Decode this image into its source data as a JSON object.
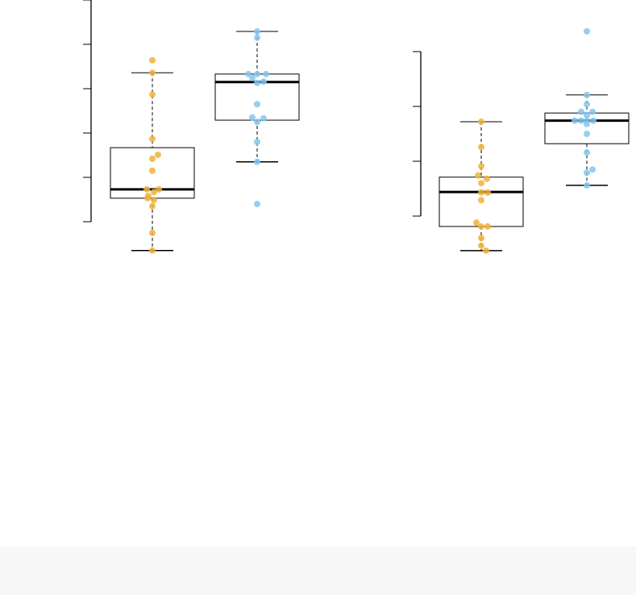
{
  "colors": {
    "group1": "#f0b23a",
    "group2": "#85c6ef",
    "axis": "#000000",
    "footer": "#f7f7f7"
  },
  "chart_data": [
    {
      "type": "box",
      "title": "",
      "xlabel": "",
      "ylabel": "",
      "ylim": [
        -0.8,
        5
      ],
      "yticks": [
        0,
        1,
        2,
        3,
        4,
        5
      ],
      "tick_labels_shown": false,
      "groups": [
        {
          "color": "#f0b23a",
          "box": {
            "whisker_low": -0.65,
            "q1": 0.53,
            "median": 0.73,
            "q3": 1.67,
            "whisker_high": 3.36
          },
          "points": [
            3.64,
            3.36,
            2.87,
            1.87,
            1.51,
            1.42,
            1.15,
            0.73,
            0.73,
            0.67,
            0.58,
            0.53,
            0.49,
            0.35,
            -0.25,
            -0.65
          ]
        },
        {
          "color": "#85c6ef",
          "box": {
            "whisker_low": 1.35,
            "q1": 2.29,
            "median": 3.15,
            "q3": 3.33,
            "whisker_high": 4.29
          },
          "points": [
            4.29,
            4.15,
            3.33,
            3.33,
            3.33,
            3.24,
            3.16,
            3.13,
            2.65,
            2.35,
            2.33,
            2.25,
            1.8,
            1.35,
            0.4
          ]
        }
      ]
    },
    {
      "type": "box",
      "title": "",
      "xlabel": "",
      "ylabel": "",
      "ylim": [
        -0.7,
        3.5
      ],
      "yticks": [
        0,
        1,
        2,
        3
      ],
      "tick_labels_shown": false,
      "groups": [
        {
          "color": "#f0b23a",
          "box": {
            "whisker_low": -0.63,
            "q1": -0.19,
            "median": 0.44,
            "q3": 0.71,
            "whisker_high": 1.72
          },
          "points": [
            1.72,
            1.26,
            0.91,
            0.74,
            0.68,
            0.6,
            0.43,
            0.43,
            0.29,
            -0.12,
            -0.19,
            -0.19,
            -0.4,
            -0.54,
            -0.63
          ]
        },
        {
          "color": "#85c6ef",
          "box": {
            "whisker_low": 0.56,
            "q1": 1.32,
            "median": 1.74,
            "q3": 1.88,
            "whisker_high": 2.21
          },
          "points": [
            3.37,
            2.21,
            2.04,
            1.9,
            1.9,
            1.84,
            1.74,
            1.74,
            1.74,
            1.74,
            1.68,
            1.5,
            1.16,
            0.85,
            0.79,
            0.56
          ]
        }
      ]
    }
  ]
}
